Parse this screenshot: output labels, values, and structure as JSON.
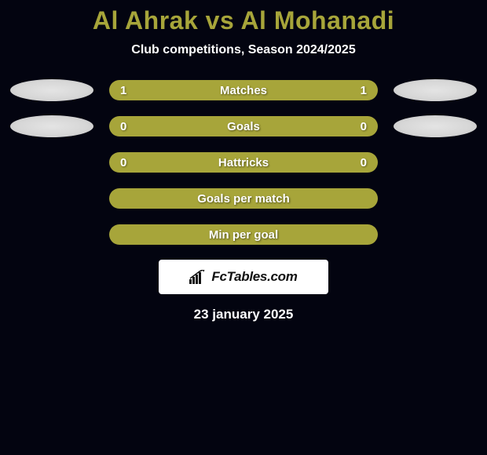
{
  "title": "Al Ahrak vs Al Mohanadi",
  "title_color": "#a7a53a",
  "subtitle": "Club competitions, Season 2024/2025",
  "bar_color": "#a7a53a",
  "text_color": "#ffffff",
  "background_color": "#030410",
  "ellipse_color": "#d6d6d6",
  "rows": [
    {
      "label": "Matches",
      "left": "1",
      "right": "1",
      "show_ellipses": true
    },
    {
      "label": "Goals",
      "left": "0",
      "right": "0",
      "show_ellipses": true
    },
    {
      "label": "Hattricks",
      "left": "0",
      "right": "0",
      "show_ellipses": false
    },
    {
      "label": "Goals per match",
      "left": "",
      "right": "",
      "show_ellipses": false
    },
    {
      "label": "Min per goal",
      "left": "",
      "right": "",
      "show_ellipses": false
    }
  ],
  "brand": {
    "name": "FcTables.com"
  },
  "date": "23 january 2025"
}
